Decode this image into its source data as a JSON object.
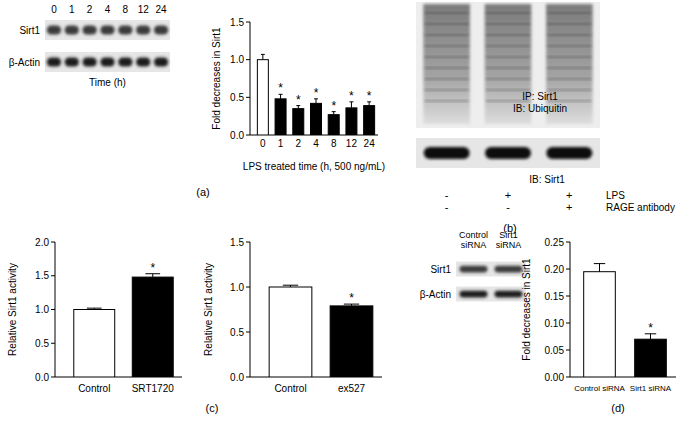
{
  "chart_data": [
    {
      "type": "bar",
      "y_label": "Fold decreases in Sirt1",
      "x_label": "LPS treated time (h, 500 ng/mL)",
      "categories": [
        "0",
        "1",
        "2",
        "4",
        "8",
        "12",
        "24"
      ],
      "values": [
        1.0,
        0.48,
        0.35,
        0.42,
        0.27,
        0.36,
        0.39
      ],
      "errors": [
        0.07,
        0.06,
        0.04,
        0.06,
        0.04,
        0.08,
        0.05
      ],
      "colors": [
        "#ffffff",
        "#000000",
        "#000000",
        "#000000",
        "#000000",
        "#000000",
        "#000000"
      ],
      "annotations": [
        null,
        "*",
        "*",
        "*",
        "*",
        "*",
        "*"
      ],
      "ylim": [
        0,
        1.5
      ],
      "yticks": [
        {
          "value": 0,
          "label": "0.0"
        },
        0.5,
        {
          "value": 1,
          "label": "1.0"
        },
        1.5
      ]
    },
    {
      "type": "bar",
      "y_label": "Relative Sirt1 activity",
      "categories": [
        "Control",
        "SRT1720"
      ],
      "values": [
        1.0,
        1.48
      ],
      "errors": [
        0.02,
        0.05
      ],
      "colors": [
        "#ffffff",
        "#000000"
      ],
      "annotations": [
        null,
        "*"
      ],
      "ylim": [
        0,
        2
      ],
      "yticks": [
        {
          "value": 0,
          "label": "0.0"
        },
        0.5,
        {
          "value": 1,
          "label": "1.0"
        },
        1.5,
        {
          "value": 2,
          "label": "2.0"
        }
      ]
    },
    {
      "type": "bar",
      "y_label": "Relative Sirt1 activity",
      "categories": [
        "Control",
        "ex527"
      ],
      "values": [
        1.0,
        0.79
      ],
      "errors": [
        0.02,
        0.02
      ],
      "colors": [
        "#ffffff",
        "#000000"
      ],
      "annotations": [
        null,
        "*"
      ],
      "ylim": [
        0,
        1.5
      ],
      "yticks": [
        {
          "value": 0,
          "label": "0.0"
        },
        0.5,
        {
          "value": 1,
          "label": "1.0"
        },
        1.5
      ]
    },
    {
      "type": "bar",
      "y_label": "Fold decreases in Sirt1",
      "categories": [
        "Control siRNA",
        "Sirt1 siRNA"
      ],
      "values": [
        0.195,
        0.07
      ],
      "errors": [
        0.015,
        0.01
      ],
      "colors": [
        "#ffffff",
        "#000000"
      ],
      "annotations": [
        null,
        "*"
      ],
      "ylim": [
        0,
        0.25
      ],
      "yticks": [
        {
          "value": 0,
          "label": "0.00"
        },
        0.05,
        {
          "value": 0.1,
          "label": "0.10"
        },
        0.15,
        {
          "value": 0.2,
          "label": "0.20"
        },
        0.25
      ]
    }
  ],
  "blots": [
    {
      "lane_labels": [
        "0",
        "1",
        "2",
        "4",
        "8",
        "12",
        "24"
      ],
      "rows": [
        "Sirt1",
        "β-Actin"
      ],
      "x_label": "Time (h)"
    },
    {
      "upper_label": [
        "IP: Sirt1",
        "IB: Ubiquitin"
      ],
      "lower_label": "IB: Sirt1",
      "conditions": [
        {
          "name": "LPS",
          "signs": [
            "-",
            "+",
            "+"
          ]
        },
        {
          "name": "RAGE antibody",
          "signs": [
            "-",
            "-",
            "+"
          ]
        }
      ]
    },
    {
      "lane_labels": [
        "Control siRNA",
        "Sirt1 siRNA"
      ],
      "rows": [
        "Sirt1",
        "β-Actin"
      ]
    }
  ],
  "panels": [
    "(a)",
    "(b)",
    "(c)",
    "(d)"
  ]
}
